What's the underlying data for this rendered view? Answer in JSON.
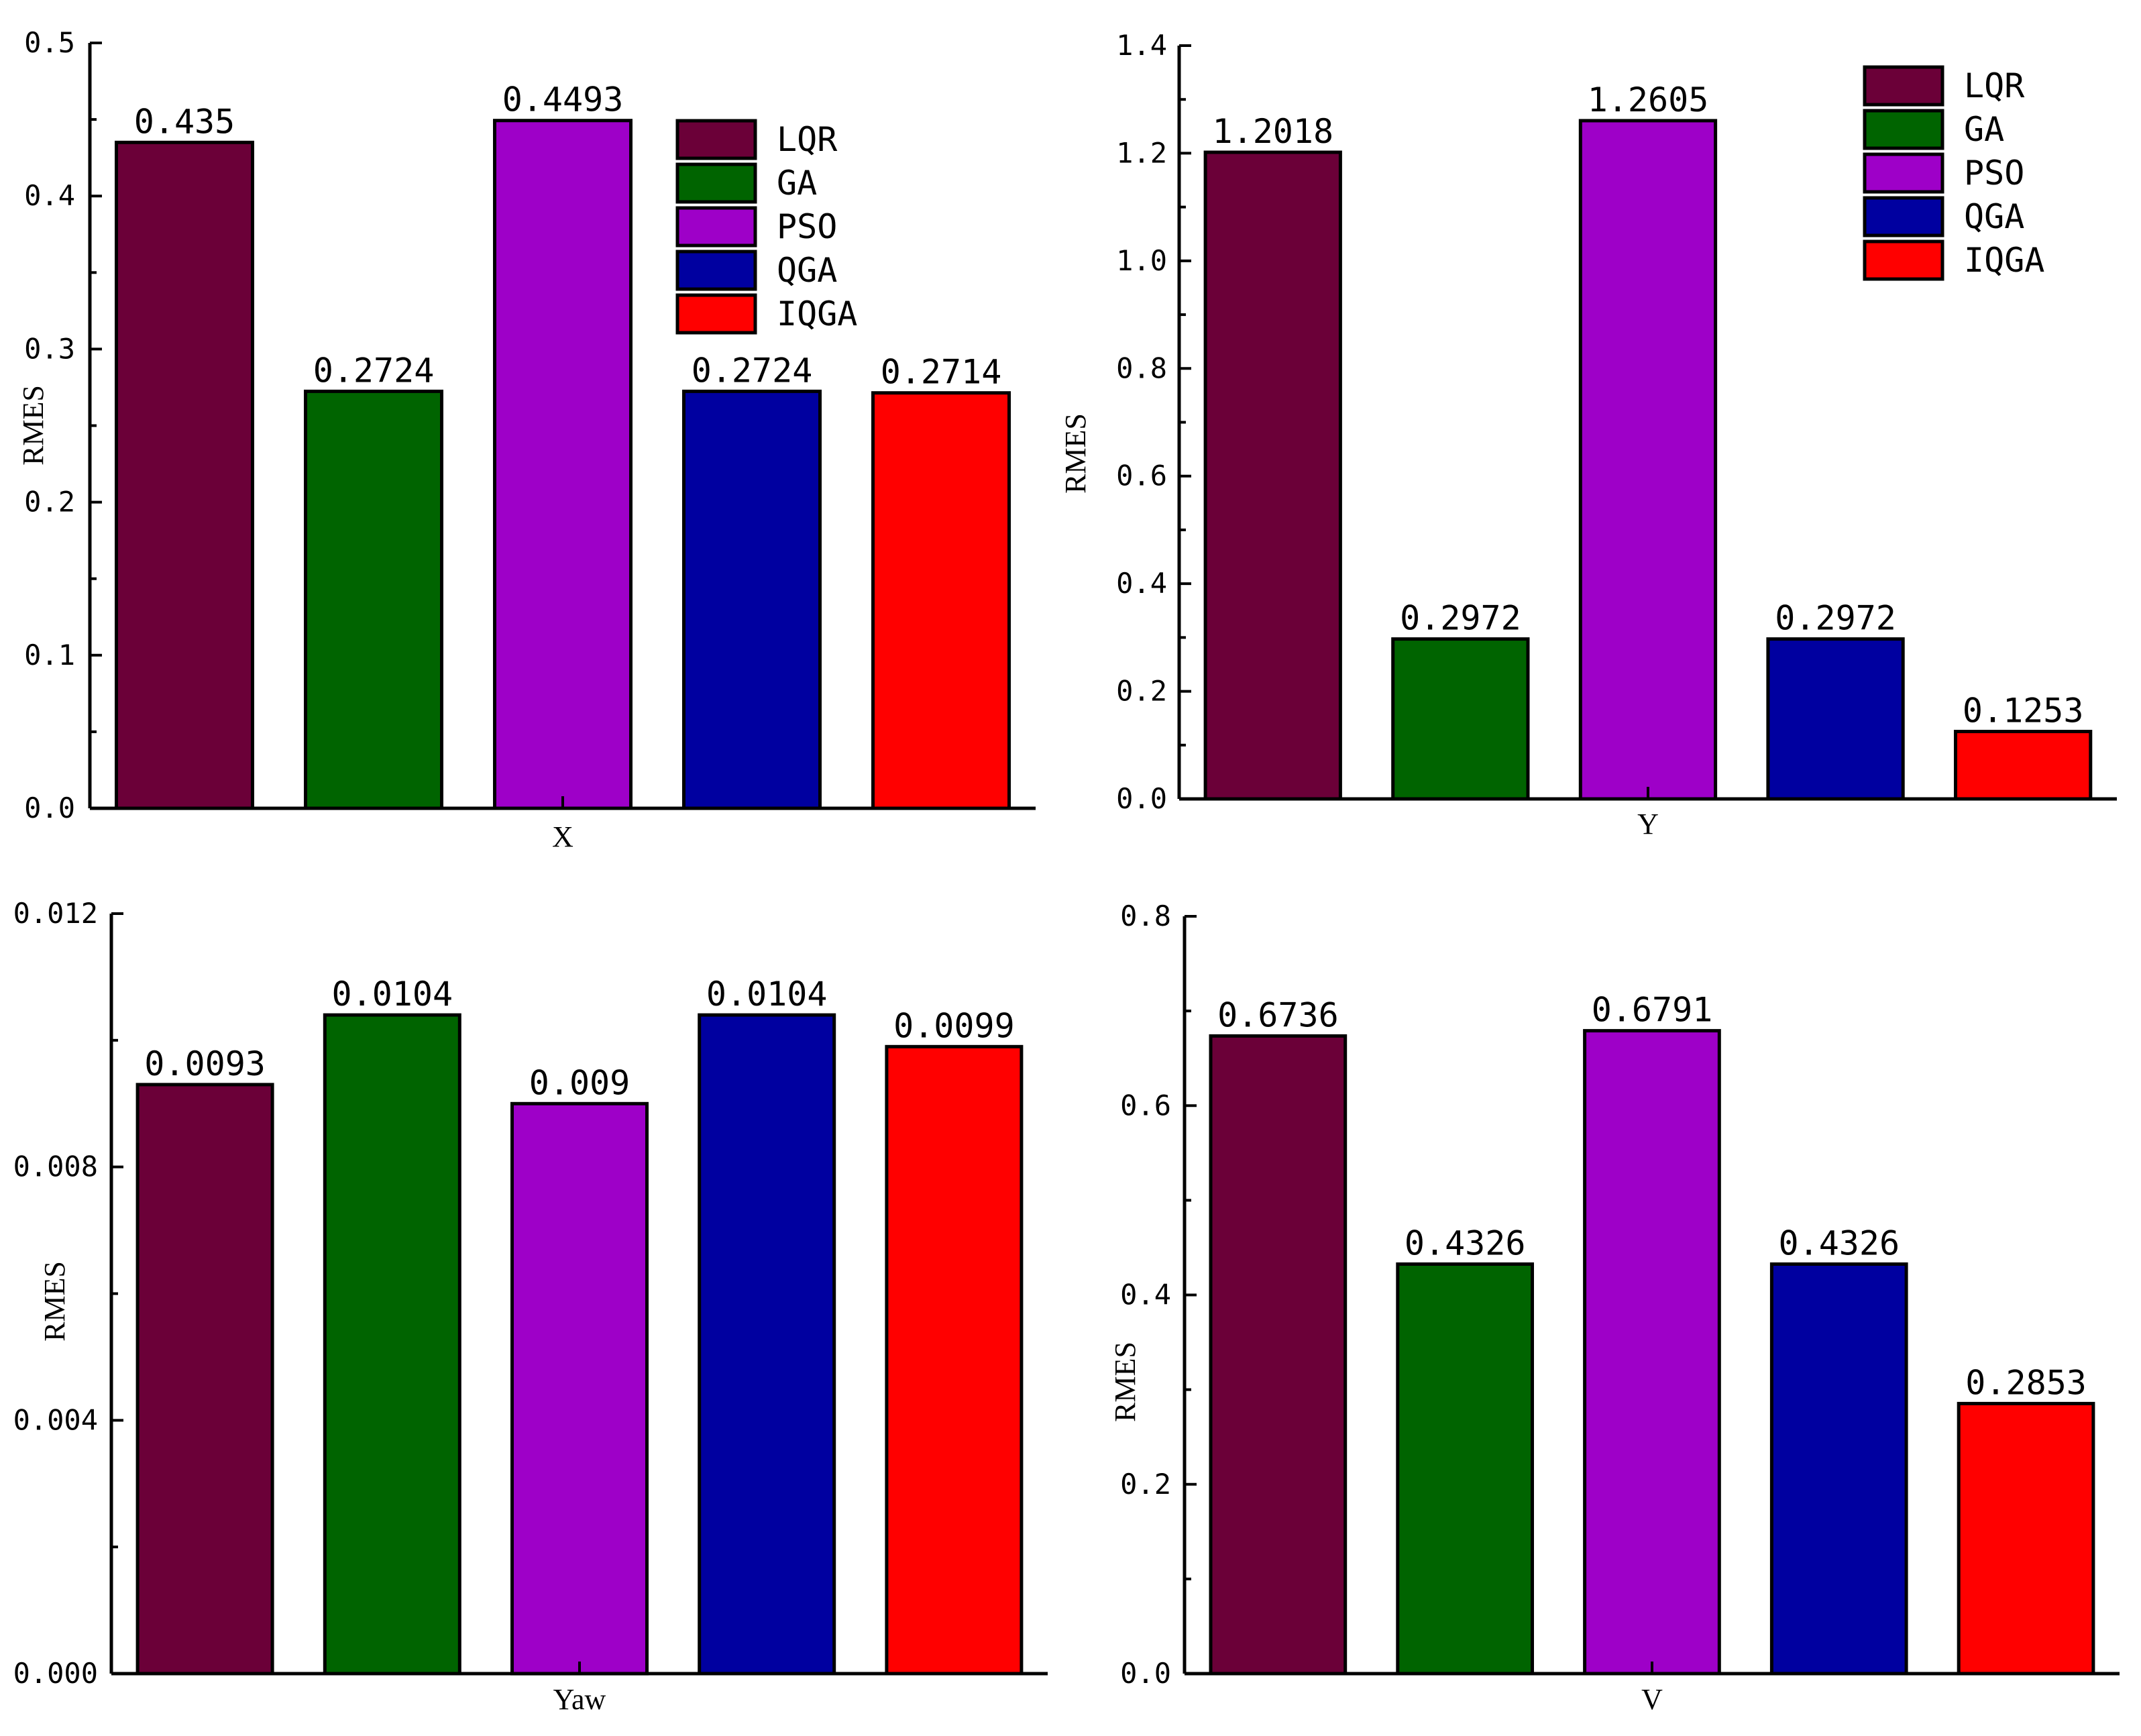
{
  "palette": {
    "LQR": "#6b0038",
    "GA": "#006400",
    "PSO": "#9e00c8",
    "QGA": "#0000a0",
    "IQGA": "#ff0000"
  },
  "chart_data": [
    {
      "type": "bar",
      "xlabel": "X",
      "ylabel": "RMES",
      "ylim": [
        0,
        0.5
      ],
      "yticks": [
        0.0,
        0.1,
        0.2,
        0.3,
        0.4,
        0.5
      ],
      "ytick_labels": [
        "0.0",
        "0.1",
        "0.2",
        "0.3",
        "0.4",
        "0.5"
      ],
      "categories": [
        "LQR",
        "GA",
        "PSO",
        "QGA",
        "IQGA"
      ],
      "values": [
        0.435,
        0.2724,
        0.4493,
        0.2724,
        0.2714
      ],
      "data_labels": [
        "0.435",
        "0.2724",
        "0.4493",
        "0.2724",
        "0.2714"
      ],
      "legend": {
        "show": true,
        "placement": "top-right",
        "entries": [
          "LQR",
          "GA",
          "PSO",
          "QGA",
          "IQGA"
        ]
      }
    },
    {
      "type": "bar",
      "xlabel": "Y",
      "ylabel": "RMES",
      "ylim": [
        0,
        1.4
      ],
      "yticks": [
        0.0,
        0.2,
        0.4,
        0.6,
        0.8,
        1.0,
        1.2,
        1.4
      ],
      "ytick_labels": [
        "0.0",
        "0.2",
        "0.4",
        "0.6",
        "0.8",
        "1.0",
        "1.2",
        "1.4"
      ],
      "categories": [
        "LQR",
        "GA",
        "PSO",
        "QGA",
        "IQGA"
      ],
      "values": [
        1.2018,
        0.2972,
        1.2605,
        0.2972,
        0.1253
      ],
      "data_labels": [
        "1.2018",
        "0.2972",
        "1.2605",
        "0.2972",
        "0.1253"
      ],
      "legend": {
        "show": true,
        "placement": "top-right",
        "entries": [
          "LQR",
          "GA",
          "PSO",
          "QGA",
          "IQGA"
        ]
      }
    },
    {
      "type": "bar",
      "xlabel": "Yaw",
      "ylabel": "RMES",
      "ylim": [
        0,
        0.012
      ],
      "yticks": [
        0.0,
        0.004,
        0.008,
        0.012
      ],
      "ytick_labels": [
        "0.000",
        "0.004",
        "0.008",
        "0.012"
      ],
      "categories": [
        "LQR",
        "GA",
        "PSO",
        "QGA",
        "IQGA"
      ],
      "values": [
        0.0093,
        0.0104,
        0.009,
        0.0104,
        0.0099
      ],
      "data_labels": [
        "0.0093",
        "0.0104",
        "0.009",
        "0.0104",
        "0.0099"
      ],
      "legend": {
        "show": false
      }
    },
    {
      "type": "bar",
      "xlabel": "V",
      "ylabel": "RMES",
      "ylim": [
        0,
        0.8
      ],
      "yticks": [
        0.0,
        0.2,
        0.4,
        0.6,
        0.8
      ],
      "ytick_labels": [
        "0.0",
        "0.2",
        "0.4",
        "0.6",
        "0.8"
      ],
      "categories": [
        "LQR",
        "GA",
        "PSO",
        "QGA",
        "IQGA"
      ],
      "values": [
        0.6736,
        0.4326,
        0.6791,
        0.4326,
        0.2853
      ],
      "data_labels": [
        "0.6736",
        "0.4326",
        "0.6791",
        "0.4326",
        "0.2853"
      ],
      "legend": {
        "show": false
      }
    }
  ]
}
